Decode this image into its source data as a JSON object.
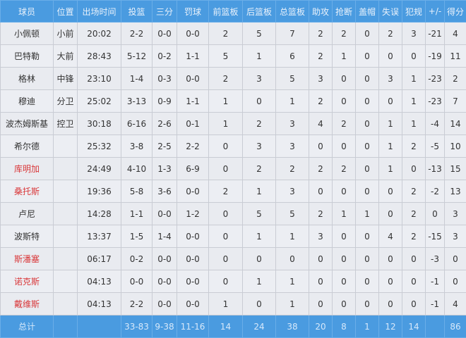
{
  "colors": {
    "header_bg": "#4a9be0",
    "highlight_name": "#d9383a",
    "body_bg": "#eceef3"
  },
  "headers": [
    "球员",
    "位置",
    "出场时间",
    "投篮",
    "三分",
    "罚球",
    "前篮板",
    "后篮板",
    "总篮板",
    "助攻",
    "抢断",
    "盖帽",
    "失误",
    "犯规",
    "+/-",
    "得分"
  ],
  "rows": [
    {
      "name": "小佩顿",
      "pos": "小前",
      "highlight": false,
      "stats": [
        "20:02",
        "2-2",
        "0-0",
        "0-0",
        "2",
        "5",
        "7",
        "2",
        "2",
        "0",
        "2",
        "3",
        "-21",
        "4"
      ]
    },
    {
      "name": "巴特勒",
      "pos": "大前",
      "highlight": false,
      "stats": [
        "28:43",
        "5-12",
        "0-2",
        "1-1",
        "5",
        "1",
        "6",
        "2",
        "1",
        "0",
        "0",
        "0",
        "-19",
        "11"
      ]
    },
    {
      "name": "格林",
      "pos": "中锋",
      "highlight": false,
      "stats": [
        "23:10",
        "1-4",
        "0-3",
        "0-0",
        "2",
        "3",
        "5",
        "3",
        "0",
        "0",
        "3",
        "1",
        "-23",
        "2"
      ]
    },
    {
      "name": "穆迪",
      "pos": "分卫",
      "highlight": false,
      "stats": [
        "25:02",
        "3-13",
        "0-9",
        "1-1",
        "1",
        "0",
        "1",
        "2",
        "0",
        "0",
        "0",
        "1",
        "-23",
        "7"
      ]
    },
    {
      "name": "波杰姆斯基",
      "pos": "控卫",
      "highlight": false,
      "stats": [
        "30:18",
        "6-16",
        "2-6",
        "0-1",
        "1",
        "2",
        "3",
        "4",
        "2",
        "0",
        "1",
        "1",
        "-4",
        "14"
      ]
    },
    {
      "name": "希尔德",
      "pos": "",
      "highlight": false,
      "stats": [
        "25:32",
        "3-8",
        "2-5",
        "2-2",
        "0",
        "3",
        "3",
        "0",
        "0",
        "0",
        "1",
        "2",
        "-5",
        "10"
      ]
    },
    {
      "name": "库明加",
      "pos": "",
      "highlight": true,
      "stats": [
        "24:49",
        "4-10",
        "1-3",
        "6-9",
        "0",
        "2",
        "2",
        "2",
        "2",
        "0",
        "1",
        "0",
        "-13",
        "15"
      ]
    },
    {
      "name": "桑托斯",
      "pos": "",
      "highlight": true,
      "stats": [
        "19:36",
        "5-8",
        "3-6",
        "0-0",
        "2",
        "1",
        "3",
        "0",
        "0",
        "0",
        "0",
        "2",
        "-2",
        "13"
      ]
    },
    {
      "name": "卢尼",
      "pos": "",
      "highlight": false,
      "stats": [
        "14:28",
        "1-1",
        "0-0",
        "1-2",
        "0",
        "5",
        "5",
        "2",
        "1",
        "1",
        "0",
        "2",
        "0",
        "3"
      ]
    },
    {
      "name": "波斯特",
      "pos": "",
      "highlight": false,
      "stats": [
        "13:37",
        "1-5",
        "1-4",
        "0-0",
        "0",
        "1",
        "1",
        "3",
        "0",
        "0",
        "4",
        "2",
        "-15",
        "3"
      ]
    },
    {
      "name": "斯潘塞",
      "pos": "",
      "highlight": true,
      "stats": [
        "06:17",
        "0-2",
        "0-0",
        "0-0",
        "0",
        "0",
        "0",
        "0",
        "0",
        "0",
        "0",
        "0",
        "-3",
        "0"
      ]
    },
    {
      "name": "诺克斯",
      "pos": "",
      "highlight": true,
      "stats": [
        "04:13",
        "0-0",
        "0-0",
        "0-0",
        "0",
        "1",
        "1",
        "0",
        "0",
        "0",
        "0",
        "0",
        "-1",
        "0"
      ]
    },
    {
      "name": "戴维斯",
      "pos": "",
      "highlight": true,
      "stats": [
        "04:13",
        "2-2",
        "0-0",
        "0-0",
        "1",
        "0",
        "1",
        "0",
        "0",
        "0",
        "0",
        "0",
        "-1",
        "4"
      ]
    }
  ],
  "total": {
    "label": "总计",
    "pos": "",
    "stats": [
      "",
      "33-83",
      "9-38",
      "11-16",
      "14",
      "24",
      "38",
      "20",
      "8",
      "1",
      "12",
      "14",
      "",
      "86"
    ]
  }
}
